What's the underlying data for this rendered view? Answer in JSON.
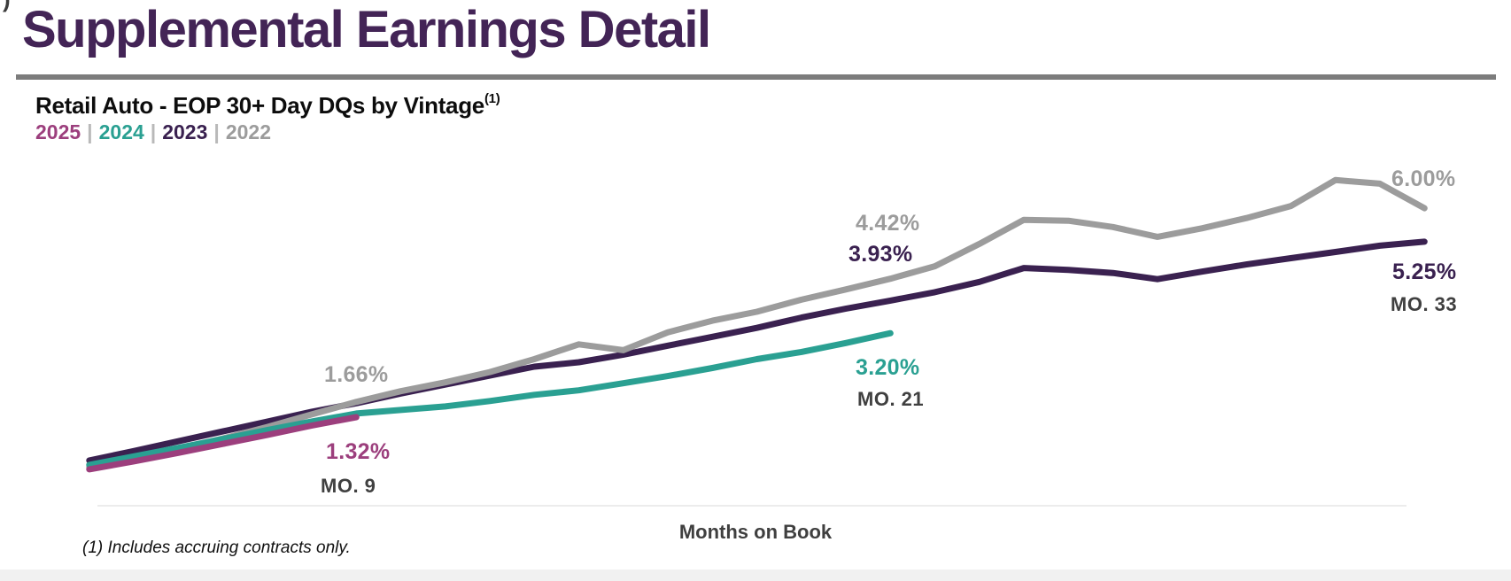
{
  "page": {
    "corner_artifact": ")",
    "title": "Supplemental Earnings Detail",
    "footnote": "(1) Includes accruing contracts only."
  },
  "chart": {
    "heading": "Retail Auto - EOP 30+ Day DQs by Vintage",
    "heading_ref": "(1)",
    "legend_separator": "|"
  },
  "chart_data": {
    "type": "line",
    "title": "Retail Auto - EOP 30+ Day DQs by Vintage (1)",
    "xlabel": "Months on Book",
    "ylabel": "",
    "ylim": [
      0,
      7
    ],
    "grid": false,
    "legend_position": "top-left, colored year labels under heading",
    "x_unit": "months on book",
    "y_unit": "percent 30+ day delinquent",
    "series": [
      {
        "name": "2025",
        "color": "#9c3f7d",
        "points": [
          [
            3,
            0.15
          ],
          [
            4,
            0.33
          ],
          [
            5,
            0.52
          ],
          [
            6,
            0.72
          ],
          [
            7,
            0.92
          ],
          [
            8,
            1.13
          ],
          [
            9,
            1.32
          ]
        ],
        "final_value_pct": 1.32,
        "final_month": 9
      },
      {
        "name": "2024",
        "color": "#2aa092",
        "points": [
          [
            3,
            0.25
          ],
          [
            4,
            0.44
          ],
          [
            5,
            0.63
          ],
          [
            6,
            0.83
          ],
          [
            7,
            1.03
          ],
          [
            8,
            1.22
          ],
          [
            9,
            1.4
          ],
          [
            10,
            1.48
          ],
          [
            11,
            1.56
          ],
          [
            12,
            1.68
          ],
          [
            13,
            1.82
          ],
          [
            14,
            1.92
          ],
          [
            15,
            2.08
          ],
          [
            16,
            2.24
          ],
          [
            17,
            2.42
          ],
          [
            18,
            2.62
          ],
          [
            19,
            2.78
          ],
          [
            20,
            2.98
          ],
          [
            21,
            3.2
          ]
        ],
        "final_value_pct": 3.2,
        "final_month": 21
      },
      {
        "name": "2023",
        "color": "#3a2150",
        "points": [
          [
            3,
            0.35
          ],
          [
            4,
            0.56
          ],
          [
            5,
            0.78
          ],
          [
            6,
            1.0
          ],
          [
            7,
            1.22
          ],
          [
            8,
            1.44
          ],
          [
            9,
            1.63
          ],
          [
            10,
            1.85
          ],
          [
            11,
            2.05
          ],
          [
            12,
            2.25
          ],
          [
            13,
            2.45
          ],
          [
            14,
            2.55
          ],
          [
            15,
            2.72
          ],
          [
            16,
            2.92
          ],
          [
            17,
            3.12
          ],
          [
            18,
            3.32
          ],
          [
            19,
            3.55
          ],
          [
            20,
            3.75
          ],
          [
            21,
            3.93
          ],
          [
            22,
            4.12
          ],
          [
            23,
            4.35
          ],
          [
            24,
            4.66
          ],
          [
            25,
            4.62
          ],
          [
            26,
            4.55
          ],
          [
            27,
            4.41
          ],
          [
            28,
            4.58
          ],
          [
            29,
            4.74
          ],
          [
            30,
            4.88
          ],
          [
            31,
            5.02
          ],
          [
            32,
            5.16
          ],
          [
            33,
            5.25
          ]
        ],
        "final_value_pct": 5.25,
        "final_month": 33
      },
      {
        "name": "2022",
        "color": "#9c9c9c",
        "points": [
          [
            3,
            0.2
          ],
          [
            4,
            0.4
          ],
          [
            5,
            0.6
          ],
          [
            6,
            0.84
          ],
          [
            7,
            1.1
          ],
          [
            8,
            1.38
          ],
          [
            9,
            1.66
          ],
          [
            10,
            1.9
          ],
          [
            11,
            2.1
          ],
          [
            12,
            2.33
          ],
          [
            13,
            2.62
          ],
          [
            14,
            2.95
          ],
          [
            15,
            2.82
          ],
          [
            16,
            3.22
          ],
          [
            17,
            3.48
          ],
          [
            18,
            3.68
          ],
          [
            19,
            3.95
          ],
          [
            20,
            4.18
          ],
          [
            21,
            4.42
          ],
          [
            22,
            4.7
          ],
          [
            23,
            5.2
          ],
          [
            24,
            5.74
          ],
          [
            25,
            5.72
          ],
          [
            26,
            5.58
          ],
          [
            27,
            5.36
          ],
          [
            28,
            5.55
          ],
          [
            29,
            5.78
          ],
          [
            30,
            6.05
          ],
          [
            31,
            6.63
          ],
          [
            32,
            6.55
          ],
          [
            33,
            6.0
          ]
        ],
        "final_value_pct": 6.0,
        "final_month": 33
      }
    ],
    "annotations": [
      {
        "text": "1.66%",
        "color": "#9c9c9c",
        "series": "2022",
        "month": 9
      },
      {
        "text": "1.32%",
        "color": "#9c3f7d",
        "series": "2025",
        "month": 9
      },
      {
        "text": "MO. 9",
        "color": "#404040",
        "type": "month-marker",
        "month": 9
      },
      {
        "text": "4.42%",
        "color": "#9c9c9c",
        "series": "2022",
        "month": 21
      },
      {
        "text": "3.93%",
        "color": "#3a2150",
        "series": "2023",
        "month": 21
      },
      {
        "text": "3.20%",
        "color": "#2aa092",
        "series": "2024",
        "month": 21
      },
      {
        "text": "MO. 21",
        "color": "#404040",
        "type": "month-marker",
        "month": 21
      },
      {
        "text": "6.00%",
        "color": "#9c9c9c",
        "series": "2022",
        "month": 33
      },
      {
        "text": "5.25%",
        "color": "#3a2150",
        "series": "2023",
        "month": 33
      },
      {
        "text": "MO. 33",
        "color": "#404040",
        "type": "month-marker",
        "month": 33
      }
    ]
  }
}
